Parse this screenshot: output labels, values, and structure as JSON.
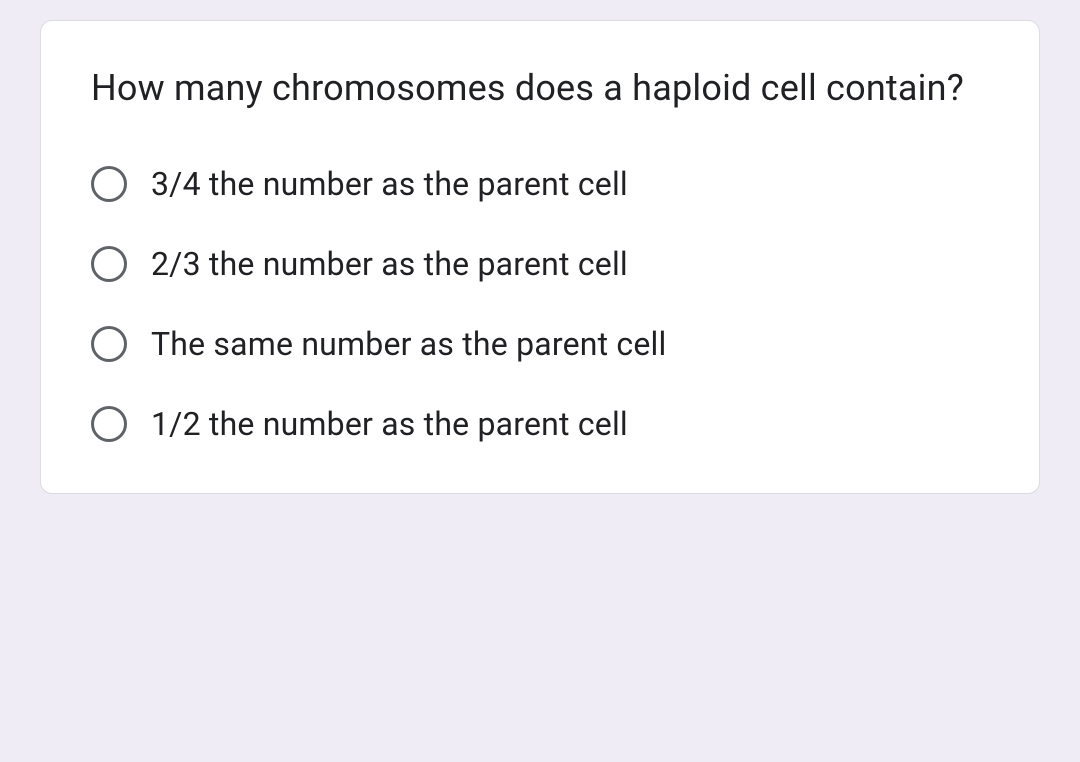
{
  "card": {
    "background_color": "#ffffff",
    "border_color": "#dadce0",
    "border_radius": 12
  },
  "page": {
    "background_color": "#f0ecf5"
  },
  "question": {
    "text": "How many chromosomes does a haploid cell contain?",
    "font_size": 36,
    "color": "#202124"
  },
  "options": [
    {
      "label": "3/4 the number as the parent cell",
      "selected": false
    },
    {
      "label": "2/3 the number as the parent cell",
      "selected": false
    },
    {
      "label": "The same number as the parent cell",
      "selected": false
    },
    {
      "label": "1/2 the number as the parent cell",
      "selected": false
    }
  ],
  "radio": {
    "border_color": "#5f6368",
    "border_width": 3,
    "size": 36
  },
  "option_text": {
    "font_size": 32,
    "color": "#202124"
  }
}
